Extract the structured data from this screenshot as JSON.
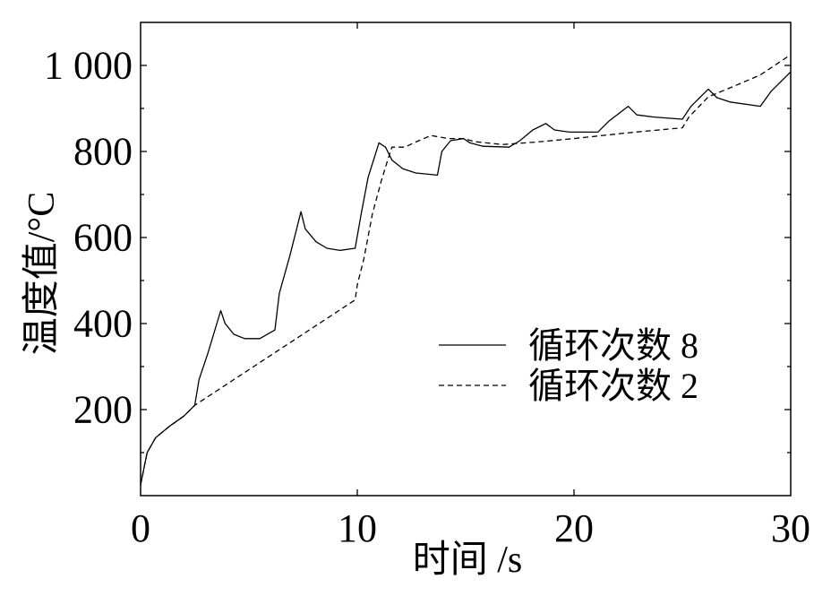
{
  "chart_data": {
    "type": "line",
    "xlabel": "时间 /s",
    "ylabel": "温度值/°C",
    "xlim": [
      0,
      30
    ],
    "ylim": [
      0,
      1100
    ],
    "xticks": [
      0,
      10,
      20,
      30
    ],
    "xtick_labels": [
      "0",
      "10",
      "20",
      "30"
    ],
    "yticks": [
      200,
      400,
      600,
      800,
      1000
    ],
    "ytick_labels": [
      "200",
      "400",
      "600",
      "800",
      "1 000"
    ],
    "grid": false,
    "legend_position": "center-right",
    "series": [
      {
        "name": "循环次数 8",
        "dashed": false,
        "color": "#000000",
        "x": [
          0,
          0.3,
          0.7,
          1.3,
          2.0,
          2.5,
          2.7,
          3.1,
          3.7,
          3.9,
          4.3,
          4.8,
          5.5,
          6.2,
          6.4,
          6.9,
          7.4,
          7.6,
          8.1,
          8.6,
          9.2,
          9.9,
          10.2,
          10.5,
          11.0,
          11.3,
          11.6,
          12.1,
          12.7,
          13.7,
          13.9,
          14.3,
          14.9,
          15.2,
          15.8,
          17.0,
          17.5,
          18.1,
          18.7,
          19.1,
          19.8,
          21.1,
          21.6,
          22.5,
          22.9,
          23.7,
          25.0,
          25.4,
          26.2,
          26.6,
          27.2,
          28.6,
          29.1,
          29.6,
          30.0
        ],
        "y": [
          25,
          100,
          135,
          160,
          185,
          210,
          270,
          330,
          430,
          400,
          375,
          365,
          365,
          385,
          470,
          560,
          660,
          620,
          590,
          575,
          570,
          575,
          660,
          740,
          820,
          810,
          780,
          760,
          750,
          745,
          800,
          825,
          830,
          820,
          812,
          810,
          825,
          850,
          865,
          850,
          845,
          845,
          870,
          905,
          885,
          880,
          875,
          905,
          945,
          925,
          915,
          905,
          940,
          965,
          985
        ]
      },
      {
        "name": "循环次数 2",
        "dashed": true,
        "color": "#000000",
        "x": [
          0,
          0.3,
          0.7,
          1.3,
          2.0,
          2.5,
          9.9,
          10.0,
          10.3,
          10.7,
          11.1,
          11.4,
          11.6,
          12.2,
          12.7,
          13.4,
          14.2,
          14.9,
          15.4,
          16.7,
          18.3,
          20.0,
          22.4,
          25.0,
          25.3,
          26.2,
          27.4,
          28.6,
          30.0
        ],
        "y": [
          25,
          100,
          135,
          160,
          185,
          210,
          455,
          490,
          550,
          655,
          730,
          780,
          810,
          810,
          822,
          837,
          830,
          830,
          823,
          816,
          822,
          830,
          843,
          855,
          880,
          927,
          952,
          978,
          1025
        ]
      }
    ]
  }
}
